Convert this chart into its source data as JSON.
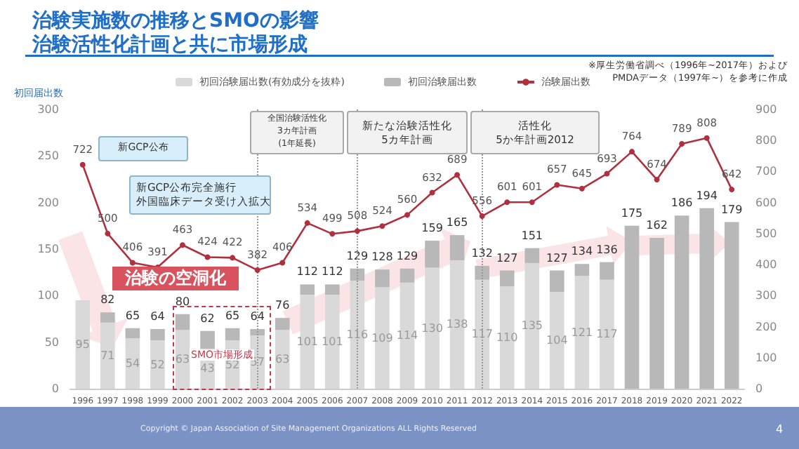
{
  "chart_data": {
    "type": "bar",
    "title": "治験実施数の推移とSMOの影響",
    "subtitle": "治験活性化計画と共に市場形成",
    "ylabel": "初回届出数",
    "categories": [
      "1996",
      "1997",
      "1998",
      "1999",
      "2000",
      "2001",
      "2002",
      "2003",
      "2004",
      "2005",
      "2006",
      "2007",
      "2008",
      "2009",
      "2010",
      "2011",
      "2012",
      "2013",
      "2014",
      "2015",
      "2016",
      "2017",
      "2018",
      "2019",
      "2020",
      "2021",
      "2022"
    ],
    "stacked": true,
    "legend": "top",
    "grid": false,
    "ylim": [
      0,
      300
    ],
    "yticks": [
      0,
      50,
      100,
      150,
      200,
      250,
      300
    ],
    "y2lim": [
      0,
      900
    ],
    "y2ticks": [
      0,
      100,
      200,
      300,
      400,
      500,
      600,
      700,
      800,
      900
    ],
    "series": [
      {
        "name": "初回治験届出数(有効成分を抜粋)",
        "color": "#d9d9d9",
        "values": [
          95,
          71,
          54,
          52,
          63,
          43,
          52,
          57,
          63,
          101,
          101,
          116,
          109,
          114,
          130,
          138,
          117,
          110,
          135,
          104,
          121,
          117,
          null,
          null,
          null,
          null,
          null
        ],
        "value_labels": [
          "95",
          "71",
          "54",
          "52",
          "63",
          "43",
          "52",
          "57",
          "63",
          "101",
          "101",
          "116",
          "109",
          "114",
          "130",
          "138",
          "117",
          "110",
          "135",
          "104",
          "121",
          "117",
          null,
          null,
          null,
          null,
          null
        ]
      },
      {
        "name": "初回治験届出数",
        "color": "#b8b8b8",
        "values": [
          0,
          11,
          11,
          12,
          17,
          19,
          13,
          7,
          13,
          11,
          11,
          13,
          19,
          15,
          29,
          27,
          15,
          17,
          16,
          23,
          13,
          19,
          175,
          162,
          186,
          194,
          179
        ]
      },
      {
        "name": "治験届出数",
        "type": "line",
        "axis": "y2",
        "color": "#b0303f",
        "marker": "circle",
        "values": [
          722,
          500,
          406,
          391,
          463,
          424,
          422,
          382,
          406,
          534,
          499,
          508,
          524,
          560,
          632,
          689,
          556,
          601,
          601,
          657,
          645,
          693,
          764,
          674,
          789,
          808,
          642
        ],
        "value_labels": [
          "722",
          "500",
          "406",
          "391",
          "463",
          "424",
          "422",
          "382",
          "406",
          "534",
          "499",
          "508",
          "524",
          "560",
          "632",
          "689",
          "556",
          "601",
          "601",
          "657",
          "645",
          "693",
          "764",
          "674",
          "789",
          "808",
          "642"
        ]
      }
    ],
    "totals": [
      null,
      "82",
      "65",
      "64",
      "80",
      "62",
      "65",
      "64",
      "76",
      "112",
      "112",
      "129",
      "128",
      "129",
      "159",
      "165",
      "132",
      "127",
      "151",
      "127",
      "134",
      "136",
      "175",
      "162",
      "186",
      "194",
      "179"
    ],
    "ref_lines": [
      {
        "axis": "x",
        "value": "2003",
        "line_style": "dotted",
        "color": "#999999"
      },
      {
        "axis": "x",
        "value": "2007",
        "line_style": "dotted",
        "color": "#999999"
      },
      {
        "axis": "x",
        "value": "2012",
        "line_style": "dotted",
        "color": "#999999"
      }
    ],
    "annotations": [
      "※厚生労働省調べ（1996年~2017年）および\nPMDAデータ（1997年~）を参考に作成",
      "新GCP公布",
      "新GCP公布完全施行",
      "外国臨床データ受け入拡大",
      "全国治験活性化\n3カ年計画\n(1年延長)",
      "新たな治験活性化\n5カ年計画",
      "活性化\n5か年計画2012",
      "治験の空洞化",
      "SMO市場形成",
      "Copyright © Japan Association of Site Management Organizations ALL Rights Reserved",
      "4"
    ]
  }
}
